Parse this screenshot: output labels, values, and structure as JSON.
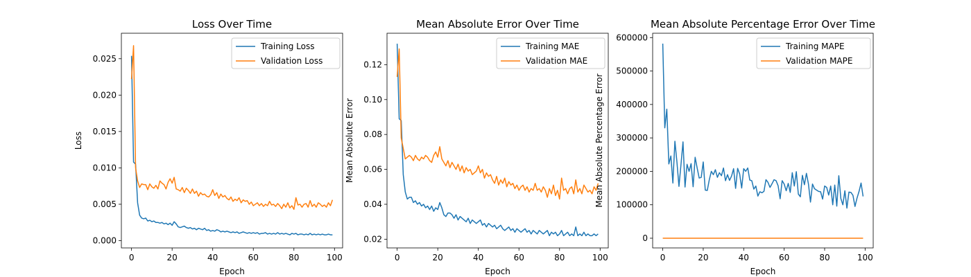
{
  "chart_data": [
    {
      "type": "line",
      "title": "Loss Over Time",
      "xlabel": "Epoch",
      "ylabel": "Loss",
      "xlim": [
        -5,
        104
      ],
      "ylim": [
        -0.001,
        0.0285
      ],
      "xticks": [
        0,
        20,
        40,
        60,
        80,
        100
      ],
      "yticks": [
        0.0,
        0.005,
        0.01,
        0.015,
        0.02,
        0.025
      ],
      "ytick_labels": [
        "0.000",
        "0.005",
        "0.010",
        "0.015",
        "0.020",
        "0.025"
      ],
      "grid": false,
      "legend": "top-right",
      "series": [
        {
          "name": "Training Loss",
          "color": "#1f77b4",
          "values": [
            0.0254,
            0.0108,
            0.0105,
            0.0052,
            0.0035,
            0.0031,
            0.003,
            0.0031,
            0.0027,
            0.0028,
            0.0026,
            0.0027,
            0.0025,
            0.0025,
            0.0024,
            0.0025,
            0.0023,
            0.0024,
            0.0022,
            0.0024,
            0.0021,
            0.0026,
            0.0023,
            0.0019,
            0.0018,
            0.0019,
            0.002,
            0.0018,
            0.0017,
            0.0018,
            0.0016,
            0.0017,
            0.0015,
            0.0017,
            0.0016,
            0.0015,
            0.0017,
            0.0014,
            0.0015,
            0.0013,
            0.0014,
            0.0013,
            0.0015,
            0.0014,
            0.0012,
            0.0013,
            0.0012,
            0.0013,
            0.0012,
            0.0011,
            0.0012,
            0.0011,
            0.0012,
            0.001,
            0.0011,
            0.0012,
            0.0011,
            0.001,
            0.0011,
            0.001,
            0.0011,
            0.001,
            0.0011,
            0.0009,
            0.001,
            0.001,
            0.0011,
            0.0009,
            0.001,
            0.0009,
            0.001,
            0.0009,
            0.0011,
            0.0009,
            0.001,
            0.0009,
            0.001,
            0.0009,
            0.0008,
            0.001,
            0.0009,
            0.001,
            0.0008,
            0.0009,
            0.0009,
            0.0008,
            0.0009,
            0.0008,
            0.001,
            0.0008,
            0.0009,
            0.0008,
            0.0009,
            0.0008,
            0.0009,
            0.0008,
            0.0008,
            0.0009,
            0.0008,
            0.0008
          ]
        },
        {
          "name": "Validation Loss",
          "color": "#ff7f0e",
          "values": [
            0.0222,
            0.0268,
            0.01,
            0.0082,
            0.0073,
            0.0078,
            0.0077,
            0.0077,
            0.007,
            0.0078,
            0.0074,
            0.0072,
            0.0076,
            0.0071,
            0.0082,
            0.0079,
            0.0077,
            0.0071,
            0.008,
            0.0085,
            0.0079,
            0.0087,
            0.0071,
            0.007,
            0.0068,
            0.0073,
            0.0066,
            0.0072,
            0.0069,
            0.0065,
            0.0071,
            0.0065,
            0.0068,
            0.0061,
            0.0066,
            0.0063,
            0.0064,
            0.0061,
            0.006,
            0.0063,
            0.007,
            0.0062,
            0.0066,
            0.0058,
            0.0064,
            0.006,
            0.0062,
            0.0058,
            0.0056,
            0.006,
            0.0054,
            0.0057,
            0.0055,
            0.0059,
            0.0052,
            0.0056,
            0.0054,
            0.0055,
            0.005,
            0.0053,
            0.0048,
            0.005,
            0.0052,
            0.0048,
            0.0051,
            0.0047,
            0.005,
            0.0048,
            0.0054,
            0.0049,
            0.005,
            0.0047,
            0.0051,
            0.0048,
            0.0044,
            0.005,
            0.0046,
            0.0052,
            0.0045,
            0.0048,
            0.0043,
            0.0059,
            0.0049,
            0.005,
            0.0046,
            0.005,
            0.0051,
            0.0046,
            0.0055,
            0.0047,
            0.005,
            0.0046,
            0.0052,
            0.005,
            0.0047,
            0.0049,
            0.0046,
            0.0052,
            0.0048,
            0.0056
          ]
        }
      ]
    },
    {
      "type": "line",
      "title": "Mean Absolute Error Over Time",
      "xlabel": "Epoch",
      "ylabel": "Mean Absolute Error",
      "xlim": [
        -5,
        104
      ],
      "ylim": [
        0.015,
        0.138
      ],
      "xticks": [
        0,
        20,
        40,
        60,
        80,
        100
      ],
      "yticks": [
        0.02,
        0.04,
        0.06,
        0.08,
        0.1,
        0.12
      ],
      "ytick_labels": [
        "0.02",
        "0.04",
        "0.06",
        "0.08",
        "0.10",
        "0.12"
      ],
      "grid": false,
      "legend": "top-right",
      "series": [
        {
          "name": "Training MAE",
          "color": "#1f77b4",
          "values": [
            0.132,
            0.089,
            0.088,
            0.057,
            0.047,
            0.043,
            0.044,
            0.044,
            0.041,
            0.042,
            0.04,
            0.041,
            0.039,
            0.04,
            0.038,
            0.039,
            0.037,
            0.039,
            0.036,
            0.038,
            0.037,
            0.041,
            0.038,
            0.034,
            0.033,
            0.035,
            0.035,
            0.034,
            0.032,
            0.034,
            0.031,
            0.033,
            0.032,
            0.031,
            0.03,
            0.032,
            0.029,
            0.031,
            0.03,
            0.029,
            0.03,
            0.031,
            0.028,
            0.029,
            0.027,
            0.029,
            0.028,
            0.027,
            0.028,
            0.026,
            0.027,
            0.028,
            0.026,
            0.025,
            0.026,
            0.027,
            0.025,
            0.026,
            0.024,
            0.026,
            0.025,
            0.024,
            0.025,
            0.026,
            0.024,
            0.025,
            0.023,
            0.025,
            0.024,
            0.023,
            0.025,
            0.024,
            0.023,
            0.024,
            0.025,
            0.022,
            0.024,
            0.023,
            0.024,
            0.022,
            0.023,
            0.025,
            0.022,
            0.023,
            0.024,
            0.022,
            0.023,
            0.022,
            0.027,
            0.022,
            0.023,
            0.022,
            0.024,
            0.022,
            0.023,
            0.022,
            0.022,
            0.023,
            0.022,
            0.023
          ]
        },
        {
          "name": "Validation MAE",
          "color": "#ff7f0e",
          "values": [
            0.113,
            0.129,
            0.078,
            0.072,
            0.066,
            0.067,
            0.068,
            0.067,
            0.065,
            0.068,
            0.066,
            0.065,
            0.067,
            0.066,
            0.068,
            0.067,
            0.065,
            0.064,
            0.068,
            0.07,
            0.067,
            0.073,
            0.066,
            0.064,
            0.062,
            0.065,
            0.061,
            0.064,
            0.062,
            0.06,
            0.063,
            0.059,
            0.062,
            0.058,
            0.061,
            0.059,
            0.06,
            0.057,
            0.058,
            0.059,
            0.062,
            0.058,
            0.06,
            0.055,
            0.058,
            0.056,
            0.057,
            0.054,
            0.052,
            0.056,
            0.051,
            0.054,
            0.052,
            0.055,
            0.05,
            0.053,
            0.051,
            0.052,
            0.049,
            0.051,
            0.048,
            0.05,
            0.051,
            0.048,
            0.05,
            0.047,
            0.049,
            0.048,
            0.052,
            0.048,
            0.049,
            0.047,
            0.05,
            0.048,
            0.044,
            0.049,
            0.046,
            0.051,
            0.045,
            0.048,
            0.043,
            0.055,
            0.048,
            0.049,
            0.046,
            0.049,
            0.05,
            0.046,
            0.054,
            0.047,
            0.049,
            0.046,
            0.051,
            0.049,
            0.047,
            0.048,
            0.046,
            0.05,
            0.048,
            0.052
          ]
        }
      ]
    },
    {
      "type": "line",
      "title": "Mean Absolute Percentage Error Over Time",
      "xlabel": "Epoch",
      "ylabel": "Mean Absolute Percentage Error",
      "xlim": [
        -5,
        104
      ],
      "ylim": [
        -29000,
        613000
      ],
      "xticks": [
        0,
        20,
        40,
        60,
        80,
        100
      ],
      "yticks": [
        0,
        100000,
        200000,
        300000,
        400000,
        500000,
        600000
      ],
      "ytick_labels": [
        "0",
        "100000",
        "200000",
        "300000",
        "400000",
        "500000",
        "600000"
      ],
      "grid": false,
      "legend": "top-right",
      "series": [
        {
          "name": "Training MAPE",
          "color": "#1f77b4",
          "values": [
            582000,
            330000,
            386000,
            222000,
            246000,
            165000,
            290000,
            228000,
            155000,
            220000,
            288000,
            153000,
            221000,
            200000,
            223000,
            154000,
            242000,
            210000,
            180000,
            182000,
            228000,
            144000,
            143000,
            175000,
            200000,
            190000,
            205000,
            182000,
            196000,
            187000,
            210000,
            172000,
            190000,
            173000,
            186000,
            208000,
            149000,
            209000,
            192000,
            150000,
            208000,
            200000,
            210000,
            174000,
            172000,
            147000,
            156000,
            126000,
            139000,
            136000,
            140000,
            175000,
            167000,
            152000,
            163000,
            175000,
            172000,
            157000,
            118000,
            172000,
            162000,
            142000,
            164000,
            137000,
            196000,
            156000,
            199000,
            132000,
            124000,
            188000,
            160000,
            194000,
            162000,
            108000,
            162000,
            148000,
            144000,
            140000,
            139000,
            117000,
            156000,
            152000,
            129000,
            156000,
            100000,
            159000,
            96000,
            187000,
            119000,
            100000,
            142000,
            90000,
            138000,
            137000,
            128000,
            95000,
            120000,
            140000,
            165000,
            125000
          ]
        },
        {
          "name": "Validation MAPE",
          "color": "#ff7f0e",
          "values": [
            0,
            0,
            0,
            0,
            0,
            0,
            0,
            0,
            0,
            0,
            0,
            0,
            0,
            0,
            0,
            0,
            0,
            0,
            0,
            0,
            0,
            0,
            0,
            0,
            0,
            0,
            0,
            0,
            0,
            0,
            0,
            0,
            0,
            0,
            0,
            0,
            0,
            0,
            0,
            0,
            0,
            0,
            0,
            0,
            0,
            0,
            0,
            0,
            0,
            0,
            0,
            0,
            0,
            0,
            0,
            0,
            0,
            0,
            0,
            0,
            0,
            0,
            0,
            0,
            0,
            0,
            0,
            0,
            0,
            0,
            0,
            0,
            0,
            0,
            0,
            0,
            0,
            0,
            0,
            0,
            0,
            0,
            0,
            0,
            0,
            0,
            0,
            0,
            0,
            0,
            0,
            0,
            0,
            0,
            0,
            0,
            0,
            0,
            0,
            0
          ]
        }
      ]
    }
  ]
}
